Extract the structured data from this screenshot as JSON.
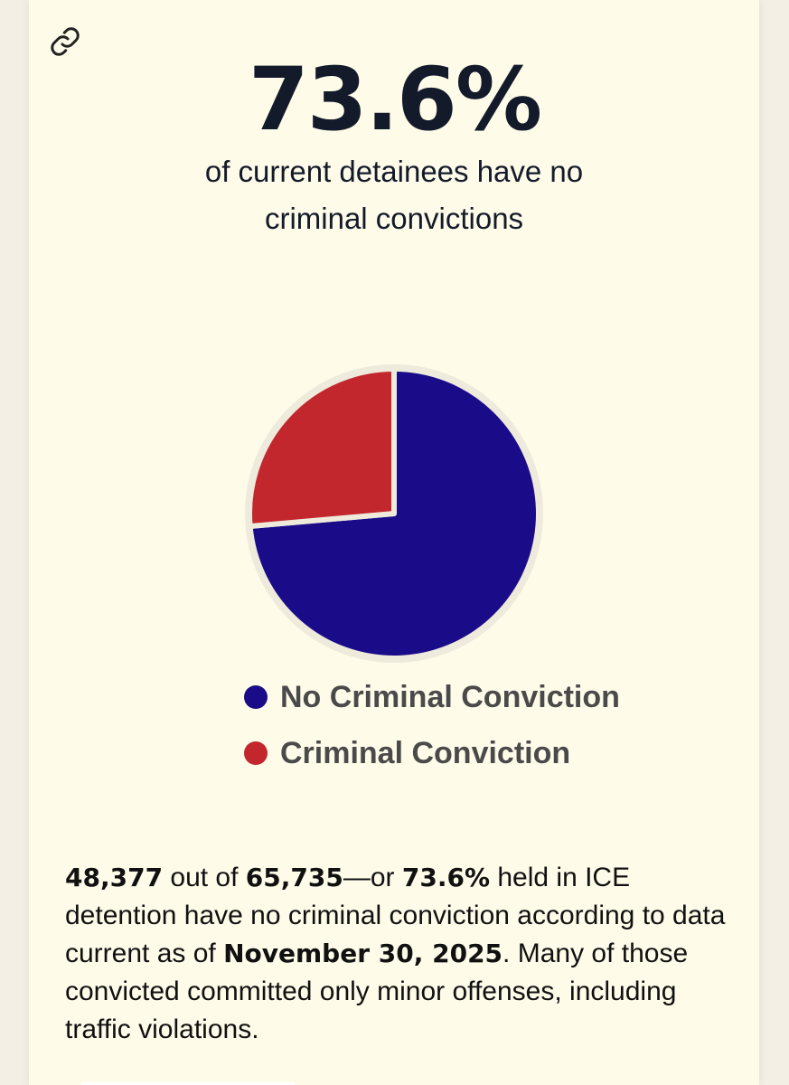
{
  "headline": {
    "stat": "73.6%",
    "subtitle": "of current detainees have no criminal convictions"
  },
  "icons": {
    "link": "link-icon"
  },
  "chart_data": {
    "type": "pie",
    "slices": [
      {
        "name": "No Criminal Conviction",
        "value": 73.6,
        "color": "#1a0c88"
      },
      {
        "name": "Criminal Conviction",
        "value": 26.4,
        "color": "#c1272d"
      }
    ],
    "legend_position": "bottom"
  },
  "summary": {
    "count_no_conviction": "48,377",
    "text_out_of": " out of ",
    "count_total": "65,735",
    "text_or": "—or ",
    "percent": "73.6%",
    "text_held": " held in ICE detention have no criminal conviction according to data current as of ",
    "date": "November 30, 2025",
    "text_end": ". Many of those convicted committed only minor offenses, including traffic violations."
  }
}
